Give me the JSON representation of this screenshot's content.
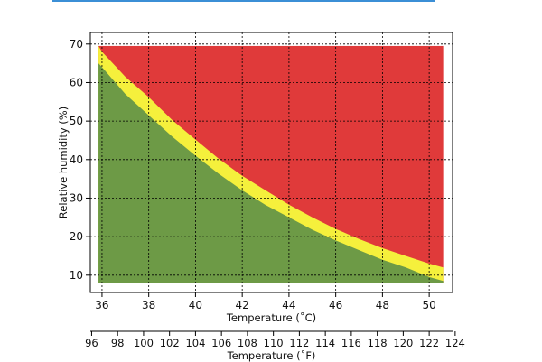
{
  "chart_data": {
    "type": "area",
    "title": "",
    "xlabel": "Temperature (˚C)",
    "ylabel": "Relative humidity (%)",
    "x2label": "Temperature (˚F)",
    "xlim": [
      35.5,
      51.0
    ],
    "ylim": [
      5.5,
      73
    ],
    "x2lim": [
      95.9,
      123.8
    ],
    "xticks": [
      36,
      38,
      40,
      42,
      44,
      46,
      48,
      50
    ],
    "yticks": [
      10,
      20,
      30,
      40,
      50,
      60,
      70
    ],
    "x2ticks": [
      96,
      98,
      100,
      102,
      104,
      106,
      108,
      110,
      112,
      114,
      116,
      118,
      120,
      122,
      124
    ],
    "grid": true,
    "fill_x_range": [
      35.85,
      50.6
    ],
    "fill_y_range": [
      8,
      69.5
    ],
    "colors": {
      "red": "#e03a3a",
      "yellow": "#f5f03c",
      "green": "#6d9a46"
    },
    "series": [
      {
        "x": [
          35.85,
          36,
          37,
          38,
          39,
          40,
          41,
          42,
          43,
          44,
          45,
          46,
          47,
          48,
          49,
          50,
          50.6
        ],
        "values": [
          69.5,
          68,
          61.5,
          56.2,
          50.3,
          45.2,
          40.2,
          35.8,
          32,
          28.3,
          25,
          22,
          19.4,
          17,
          15,
          13,
          12
        ]
      },
      {
        "x": [
          35.85,
          36,
          37,
          38,
          39,
          40,
          41,
          42,
          43,
          44,
          45,
          46,
          47,
          48,
          49,
          50,
          50.6
        ],
        "values": [
          65,
          64,
          57,
          51.5,
          46,
          41,
          36.3,
          32,
          28.2,
          25,
          21.8,
          19,
          16.5,
          14,
          12,
          9.5,
          8.5
        ]
      }
    ]
  }
}
